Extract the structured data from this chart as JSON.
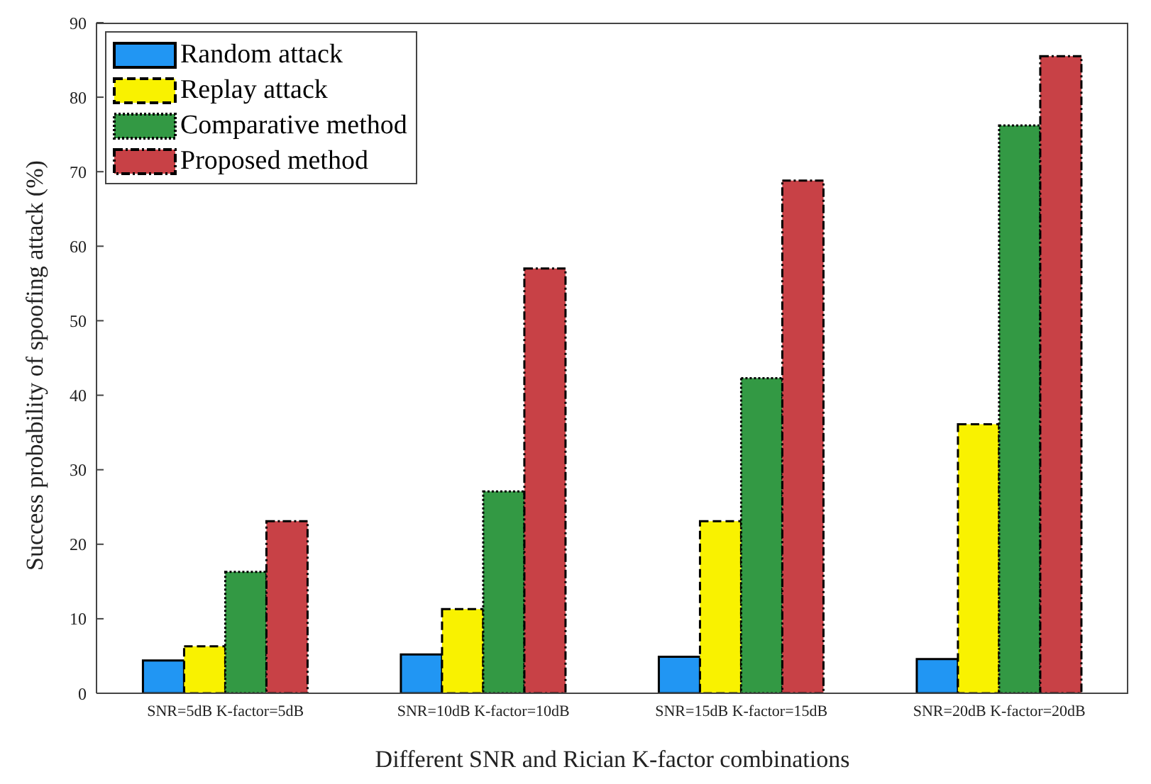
{
  "chart_data": {
    "type": "bar",
    "xlabel": "Different SNR and Rician K-factor combinations",
    "ylabel": "Success probability of spoofing attack (%)",
    "categories": [
      "SNR=5dB K-factor=5dB",
      "SNR=10dB K-factor=10dB",
      "SNR=15dB K-factor=15dB",
      "SNR=20dB K-factor=20dB"
    ],
    "series": [
      {
        "name": "Random attack",
        "color": "#2196f3",
        "values": [
          4.4,
          5.2,
          4.9,
          4.6
        ],
        "line_style": "solid"
      },
      {
        "name": "Replay attack",
        "color": "#f9f200",
        "values": [
          6.3,
          11.3,
          23.1,
          36.1
        ],
        "line_style": "dashed"
      },
      {
        "name": "Comparative method",
        "color": "#339944",
        "values": [
          16.3,
          27.1,
          42.3,
          76.2
        ],
        "line_style": "dotted"
      },
      {
        "name": "Proposed method",
        "color": "#c84146",
        "values": [
          23.1,
          57.0,
          68.8,
          85.5
        ],
        "line_style": "dashdot"
      }
    ],
    "ylim": [
      0,
      90
    ],
    "yticks": [
      0,
      10,
      20,
      30,
      40,
      50,
      60,
      70,
      80,
      90
    ],
    "grid": false,
    "legend": "top left"
  }
}
